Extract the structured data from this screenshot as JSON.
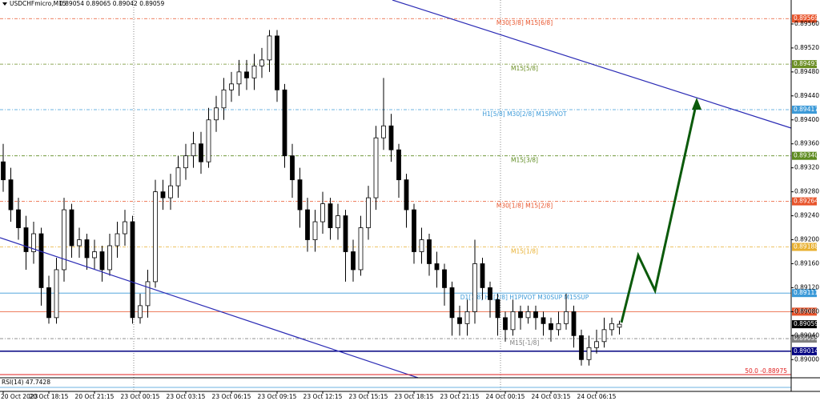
{
  "chart_data": {
    "type": "candlestick",
    "title": "USDCHFmicro,M15",
    "ohlc_text": "0.89054 0.89065 0.89042 0.89059",
    "categories": [
      "20 Oct 2023",
      null,
      null,
      null,
      null,
      null,
      "20 Oct 18:15",
      null,
      null,
      null,
      null,
      null,
      "20 Oct 21:15",
      null,
      null,
      null,
      null,
      null,
      "23 Oct 00:15",
      null,
      null,
      null,
      null,
      null,
      "23 Oct 03:15",
      null,
      null,
      null,
      null,
      null,
      "23 Oct 06:15",
      null,
      null,
      null,
      null,
      null,
      "23 Oct 09:15",
      null,
      null,
      null,
      null,
      null,
      "23 Oct 12:15",
      null,
      null,
      null,
      null,
      null,
      "23 Oct 15:15",
      null,
      null,
      null,
      null,
      null,
      "23 Oct 18:15",
      null,
      null,
      null,
      null,
      null,
      "23 Oct 21:15",
      null,
      null,
      null,
      null,
      null,
      "24 Oct 00:15",
      null,
      null,
      null,
      null,
      null,
      "24 Oct 03:15",
      null,
      null,
      null,
      null,
      null,
      "24 Oct 06:15",
      null,
      null,
      null
    ],
    "open": [
      0.8933,
      0.893,
      0.8925,
      0.8922,
      0.8918,
      0.8921,
      0.8912,
      0.8907,
      0.8915,
      0.8925,
      0.8919,
      0.892,
      0.8917,
      0.8918,
      0.8915,
      0.8919,
      0.8921,
      0.8923,
      0.8907,
      0.8909,
      0.8913,
      0.8928,
      0.8927,
      0.8929,
      0.8932,
      0.8934,
      0.8936,
      0.8933,
      0.894,
      0.8942,
      0.8945,
      0.8946,
      0.8948,
      0.8947,
      0.8949,
      0.895,
      0.8954,
      0.8945,
      0.8934,
      0.893,
      0.8925,
      0.892,
      0.8923,
      0.8926,
      0.8922,
      0.8924,
      0.8918,
      0.8915,
      0.8922,
      0.8927,
      0.8937,
      0.8939,
      0.8935,
      0.893,
      0.8925,
      0.8918,
      0.892,
      0.8916,
      0.8915,
      0.8912,
      0.8907,
      0.8906,
      0.8908,
      0.8916,
      0.8912,
      0.891,
      0.8907,
      0.8905,
      0.8908,
      0.8907,
      0.8908,
      0.8907,
      0.8906,
      0.8905,
      0.8906,
      0.8908,
      0.8904,
      0.89,
      0.8902,
      0.8903,
      0.8905,
      0.89054
    ],
    "high": [
      0.8936,
      0.8932,
      0.8927,
      0.8924,
      0.8923,
      0.8922,
      0.8914,
      0.8917,
      0.8927,
      0.8926,
      0.8922,
      0.8921,
      0.892,
      0.8919,
      0.8921,
      0.8923,
      0.8925,
      0.8924,
      0.8911,
      0.8915,
      0.893,
      0.893,
      0.8931,
      0.8934,
      0.8936,
      0.8938,
      0.8938,
      0.8942,
      0.8944,
      0.8947,
      0.8948,
      0.895,
      0.895,
      0.8951,
      0.8952,
      0.8955,
      0.8955,
      0.8946,
      0.8936,
      0.8932,
      0.8927,
      0.8925,
      0.8928,
      0.8927,
      0.8926,
      0.8925,
      0.892,
      0.8924,
      0.8929,
      0.8939,
      0.8947,
      0.8941,
      0.8936,
      0.8931,
      0.8926,
      0.8922,
      0.8921,
      0.8918,
      0.8916,
      0.8913,
      0.8909,
      0.891,
      0.892,
      0.8917,
      0.8913,
      0.8911,
      0.8908,
      0.891,
      0.8909,
      0.8909,
      0.8909,
      0.8908,
      0.8907,
      0.8908,
      0.8911,
      0.8909,
      0.8905,
      0.8904,
      0.8905,
      0.8907,
      0.8907,
      0.89065
    ],
    "low": [
      0.8928,
      0.8923,
      0.892,
      0.8915,
      0.8916,
      0.8909,
      0.8906,
      0.8906,
      0.8913,
      0.8917,
      0.8917,
      0.8915,
      0.8915,
      0.8913,
      0.8914,
      0.8917,
      0.8919,
      0.8906,
      0.8906,
      0.8907,
      0.8912,
      0.8925,
      0.8925,
      0.8927,
      0.893,
      0.8932,
      0.8931,
      0.8932,
      0.8938,
      0.894,
      0.8943,
      0.8944,
      0.8945,
      0.8945,
      0.8947,
      0.8948,
      0.8943,
      0.8932,
      0.8927,
      0.8922,
      0.8918,
      0.8918,
      0.8921,
      0.892,
      0.892,
      0.8913,
      0.8913,
      0.8914,
      0.892,
      0.8925,
      0.8935,
      0.8933,
      0.8927,
      0.8922,
      0.8916,
      0.8916,
      0.8914,
      0.8912,
      0.8909,
      0.8904,
      0.8904,
      0.8904,
      0.8906,
      0.891,
      0.8907,
      0.8904,
      0.8903,
      0.8904,
      0.8905,
      0.8906,
      0.8905,
      0.8904,
      0.8903,
      0.8904,
      0.8905,
      0.8902,
      0.8899,
      0.8899,
      0.8901,
      0.8902,
      0.8904,
      0.89042
    ],
    "close": [
      0.893,
      0.8925,
      0.8922,
      0.8918,
      0.8921,
      0.8912,
      0.8907,
      0.8915,
      0.8925,
      0.8919,
      0.892,
      0.8917,
      0.8918,
      0.8915,
      0.8919,
      0.8921,
      0.8923,
      0.8907,
      0.8909,
      0.8913,
      0.8928,
      0.8927,
      0.8929,
      0.8932,
      0.8934,
      0.8936,
      0.8933,
      0.894,
      0.8942,
      0.8945,
      0.8946,
      0.8948,
      0.8947,
      0.8949,
      0.895,
      0.8954,
      0.8945,
      0.8934,
      0.893,
      0.8925,
      0.892,
      0.8923,
      0.8926,
      0.8922,
      0.8924,
      0.8918,
      0.8915,
      0.8922,
      0.8927,
      0.8937,
      0.8939,
      0.8935,
      0.893,
      0.8925,
      0.8918,
      0.892,
      0.8916,
      0.8915,
      0.8912,
      0.8907,
      0.8906,
      0.8908,
      0.8916,
      0.8912,
      0.891,
      0.8907,
      0.8905,
      0.8908,
      0.8907,
      0.8908,
      0.8907,
      0.8906,
      0.8905,
      0.8906,
      0.8908,
      0.8904,
      0.89,
      0.8902,
      0.8903,
      0.8905,
      0.8906,
      0.89059
    ],
    "ylim": [
      0.88975,
      0.896
    ],
    "yticks": [
      {
        "value": 0.8956,
        "label": "0.89560"
      },
      {
        "value": 0.8952,
        "label": "0.89520"
      },
      {
        "value": 0.8948,
        "label": "0.89480"
      },
      {
        "value": 0.8944,
        "label": "0.89440"
      },
      {
        "value": 0.894,
        "label": "0.89400"
      },
      {
        "value": 0.8936,
        "label": "0.89360"
      },
      {
        "value": 0.8932,
        "label": "0.89320"
      },
      {
        "value": 0.8928,
        "label": "0.89280"
      },
      {
        "value": 0.8924,
        "label": "0.89240"
      },
      {
        "value": 0.892,
        "label": "0.89200"
      },
      {
        "value": 0.8916,
        "label": "0.89160"
      },
      {
        "value": 0.8912,
        "label": "0.89120"
      },
      {
        "value": 0.8908,
        "label": "0.89080"
      },
      {
        "value": 0.8904,
        "label": "0.89040"
      },
      {
        "value": 0.89,
        "label": "0.89000"
      }
    ],
    "levels": [
      {
        "price": 0.89569,
        "text": "M30[3/8] M15[6/8]",
        "color": "#e8532a",
        "line_style": "dashed"
      },
      {
        "price": 0.89493,
        "text": "M15[5/8]",
        "color": "#6b8e23",
        "line_style": "dashed"
      },
      {
        "price": 0.89417,
        "text": "H1[5/8] M30[2/8] M15PIVOT",
        "color": "#3c9ad8",
        "line_style": "dashed"
      },
      {
        "price": 0.8934,
        "price_label": "0.89340",
        "text": "M15[3/8]",
        "color": "#5c8a1e",
        "line_style": "dashed"
      },
      {
        "price": 0.89264,
        "text": "M30[1/8] M15[2/8]",
        "color": "#e8532a",
        "line_style": "dashed"
      },
      {
        "price": 0.89188,
        "text": "M15[1/8]",
        "color": "#e8b030",
        "line_style": "dashed"
      },
      {
        "price": 0.89111,
        "text": "D1[1/8] H1[2/8] H1PIVOT M30SUP M15SUP",
        "color": "#3c9ad8",
        "line_style": "solid"
      },
      {
        "price": 0.8908,
        "price_label": "0.89080",
        "color": "#e8532a",
        "line_style": "solid"
      },
      {
        "price": 0.89059,
        "color": "#000000",
        "line_style": "none"
      },
      {
        "price": 0.89035,
        "text": "M15[-1/8]",
        "color": "#808080",
        "line_style": "dashed"
      },
      {
        "price": 0.89014,
        "color": "#000080",
        "line_style": "solid"
      }
    ],
    "annotation": "50.0 -0.88975",
    "rsi_label": "RSI(14) 47.7428"
  }
}
